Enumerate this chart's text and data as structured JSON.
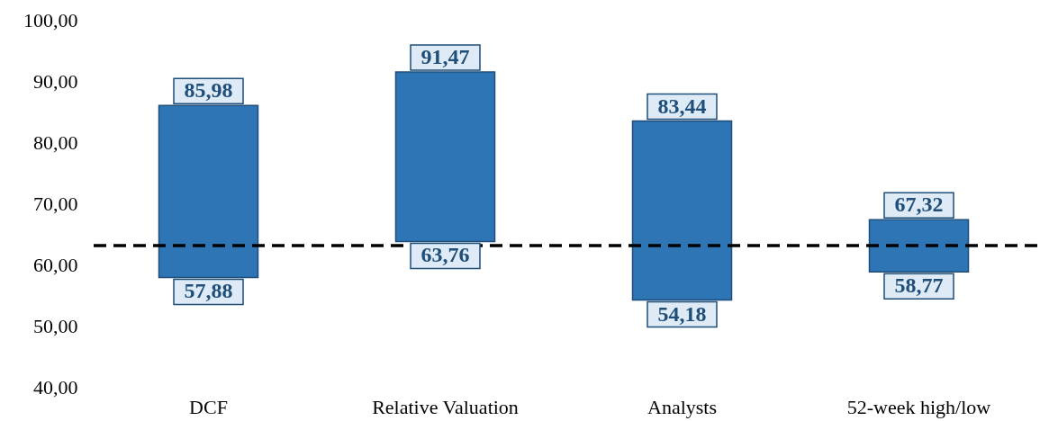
{
  "chart_data": {
    "type": "bar",
    "categories": [
      "DCF",
      "Relative Valuation",
      "Analysts",
      "52-week high/low"
    ],
    "base": [
      57.88,
      63.76,
      54.18,
      58.77
    ],
    "values": [
      28.1,
      27.71,
      29.26,
      8.55
    ],
    "color": "#2e75b6",
    "ylim": [
      40,
      100
    ],
    "yticks": [
      {
        "value": 40,
        "label": "40,00"
      },
      {
        "value": 50,
        "label": "50,00"
      },
      {
        "value": 60,
        "label": "60,00"
      },
      {
        "value": 70,
        "label": "70,00"
      },
      {
        "value": 80,
        "label": "80,00"
      },
      {
        "value": 90,
        "label": "90,00"
      },
      {
        "value": 100,
        "label": "100,00"
      }
    ],
    "grid": false,
    "ref_lines": [
      {
        "axis": "y",
        "value": 63.1,
        "line_style": "dashed",
        "color": "#000000"
      }
    ],
    "annotations": [
      {
        "text": "85,98",
        "x": "DCF",
        "y": 85.98
      },
      {
        "text": "57,88",
        "x": "DCF",
        "y": 57.88
      },
      {
        "text": "91,47",
        "x": "Relative Valuation",
        "y": 91.47
      },
      {
        "text": "63,76",
        "x": "Relative Valuation",
        "y": 63.76
      },
      {
        "text": "83,44",
        "x": "Analysts",
        "y": 83.44
      },
      {
        "text": "54,18",
        "x": "Analysts",
        "y": 54.18
      },
      {
        "text": "67,32",
        "x": "52-week high/low",
        "y": 67.32
      },
      {
        "text": "58,77",
        "x": "52-week high/low",
        "y": 58.77
      }
    ]
  }
}
